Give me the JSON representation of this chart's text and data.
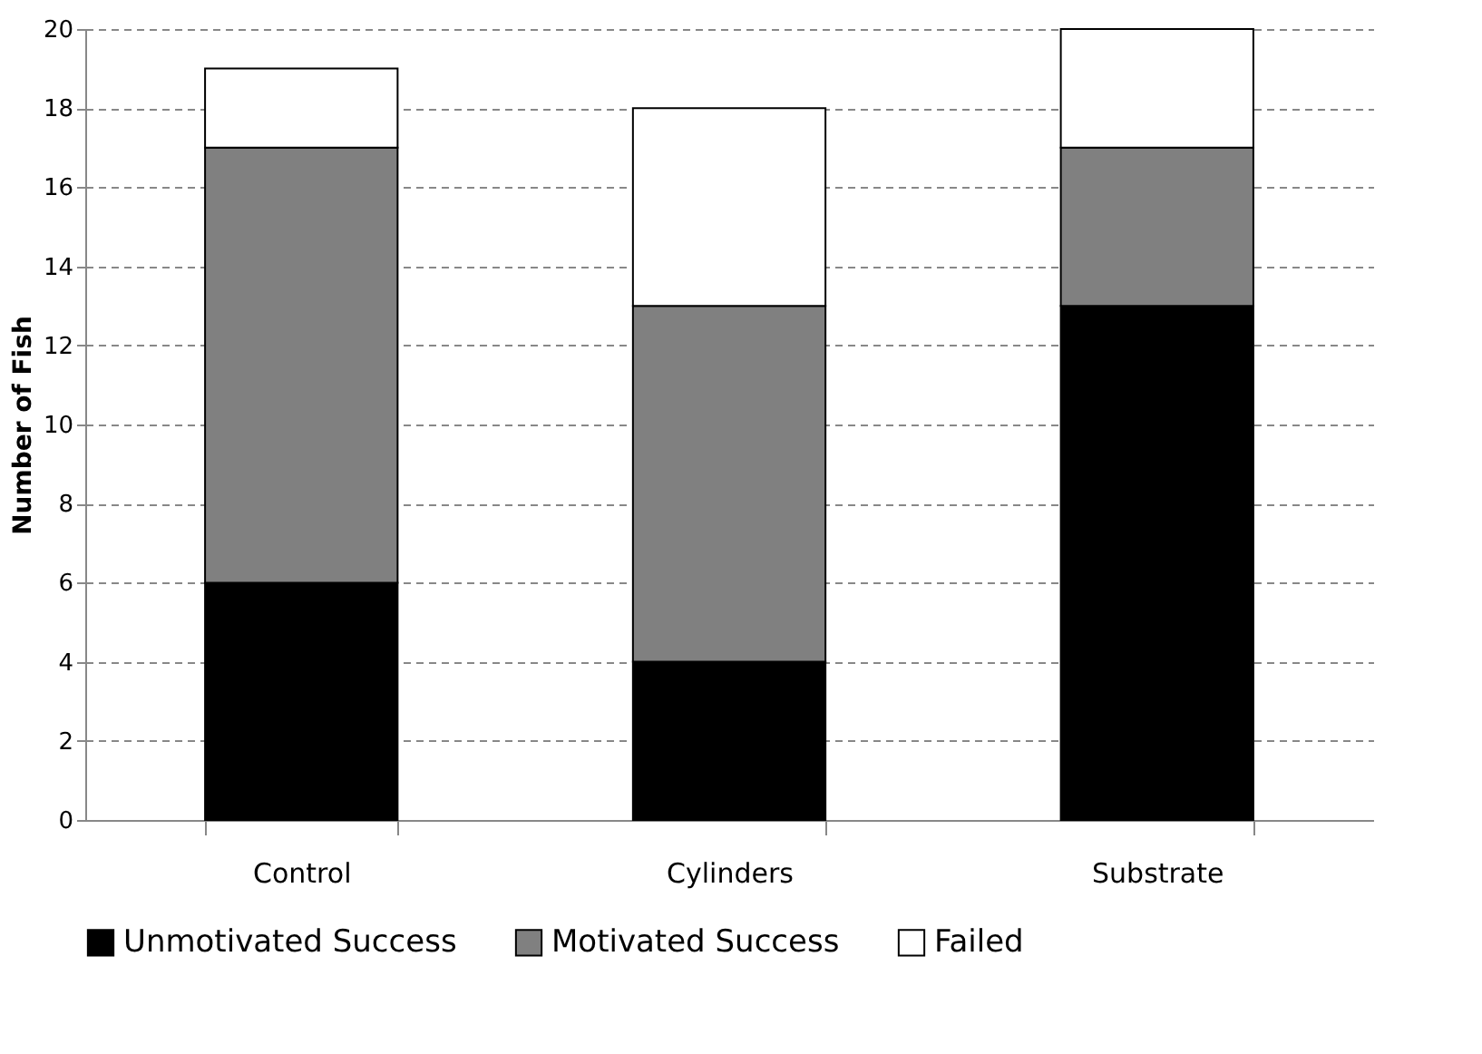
{
  "chart_data": {
    "type": "bar",
    "ylabel": "Number of Fish",
    "categories": [
      "Control",
      "Cylinders",
      "Substrate"
    ],
    "series": [
      {
        "name": "Unmotivated Success",
        "color": "#000000",
        "values": [
          6,
          4,
          13
        ]
      },
      {
        "name": "Motivated Success",
        "color": "#808080",
        "values": [
          11,
          9,
          4
        ]
      },
      {
        "name": "Failed",
        "color": "#ffffff",
        "values": [
          2,
          5,
          3
        ]
      }
    ],
    "stacked": true,
    "ylim": [
      0,
      20
    ],
    "yticks": [
      0,
      2,
      4,
      6,
      8,
      10,
      12,
      14,
      16,
      18,
      20
    ],
    "grid": "y",
    "legend": "bottom"
  }
}
